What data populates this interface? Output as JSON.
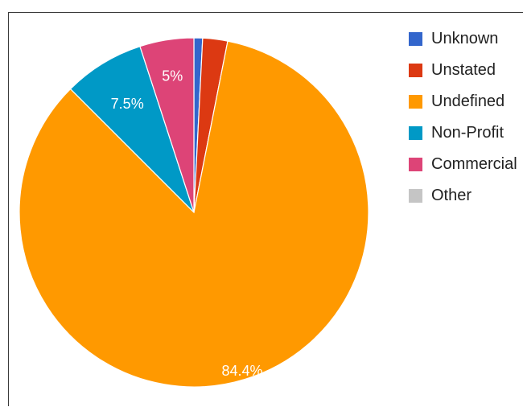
{
  "chart_data": {
    "type": "pie",
    "title": "",
    "slices": [
      {
        "name": "Unknown",
        "value": 0.8,
        "color": "#3366cc",
        "label": ""
      },
      {
        "name": "Unstated",
        "value": 2.3,
        "color": "#dc3912",
        "label": ""
      },
      {
        "name": "Undefined",
        "value": 84.4,
        "color": "#ff9900",
        "label": "84.4%"
      },
      {
        "name": "Non-Profit",
        "value": 7.5,
        "color": "#0099c6",
        "label": "7.5%"
      },
      {
        "name": "Commercial",
        "value": 5.0,
        "color": "#dd4477",
        "label": "5%"
      },
      {
        "name": "Other",
        "value": 0.0,
        "color": "#c5c5c5",
        "label": ""
      }
    ],
    "start": "12 o'clock",
    "direction": "clockwise",
    "legend_position": "right"
  }
}
